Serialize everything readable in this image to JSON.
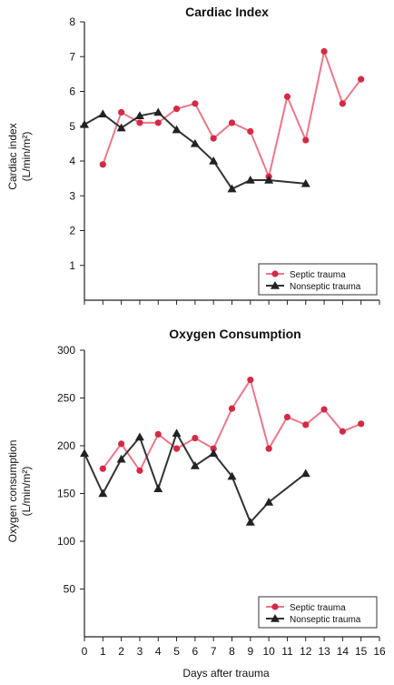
{
  "chart_data": [
    {
      "type": "line",
      "title": "Cardiac Index",
      "ylabel_line1": "Cardiac index",
      "ylabel_line2": "(L/min/m²)",
      "xlabel": "",
      "xlim": [
        0,
        16
      ],
      "ylim": [
        0,
        8
      ],
      "yticks": [
        1,
        2,
        3,
        4,
        5,
        6,
        7,
        8
      ],
      "legend_position": "bottom-right",
      "series": [
        {
          "name": "Septic trauma",
          "color": "#e8788a",
          "marker": "circle",
          "marker_color": "#d42a45",
          "x": [
            1,
            2,
            3,
            4,
            5,
            6,
            7,
            8,
            9,
            10,
            11,
            12,
            13,
            14,
            15
          ],
          "y": [
            3.9,
            5.4,
            5.1,
            5.1,
            5.5,
            5.65,
            4.65,
            5.1,
            4.85,
            3.55,
            5.85,
            4.6,
            7.15,
            5.65,
            6.35
          ]
        },
        {
          "name": "Nonseptic trauma",
          "color": "#333333",
          "marker": "triangle",
          "marker_color": "#222222",
          "x": [
            0,
            1,
            2,
            3,
            4,
            5,
            6,
            7,
            8,
            9,
            10,
            12
          ],
          "y": [
            5.05,
            5.35,
            4.95,
            5.3,
            5.4,
            4.9,
            4.5,
            4.0,
            3.2,
            3.45,
            3.45,
            3.35
          ]
        }
      ]
    },
    {
      "type": "line",
      "title": "Oxygen Consumption",
      "ylabel_line1": "Oxygen consumption",
      "ylabel_line2": "(L/min/m²)",
      "xlabel": "Days after trauma",
      "xlim": [
        0,
        16
      ],
      "ylim": [
        0,
        300
      ],
      "yticks": [
        50,
        100,
        150,
        200,
        250,
        300
      ],
      "xticks": [
        0,
        1,
        2,
        3,
        4,
        5,
        6,
        7,
        8,
        9,
        10,
        11,
        12,
        13,
        14,
        15,
        16
      ],
      "legend_position": "bottom-right",
      "series": [
        {
          "name": "Septic trauma",
          "color": "#e8788a",
          "marker": "circle",
          "marker_color": "#d42a45",
          "x": [
            1,
            2,
            3,
            4,
            5,
            6,
            7,
            8,
            9,
            10,
            11,
            12,
            13,
            14,
            15
          ],
          "y": [
            176,
            202,
            174,
            212,
            197,
            208,
            197,
            239,
            269,
            197,
            230,
            222,
            238,
            215,
            223
          ]
        },
        {
          "name": "Nonseptic trauma",
          "color": "#333333",
          "marker": "triangle",
          "marker_color": "#222222",
          "x": [
            0,
            1,
            2,
            3,
            4,
            5,
            6,
            7,
            8,
            9,
            10,
            12
          ],
          "y": [
            192,
            150,
            186,
            209,
            155,
            213,
            179,
            192,
            168,
            120,
            141,
            171
          ]
        }
      ]
    }
  ]
}
